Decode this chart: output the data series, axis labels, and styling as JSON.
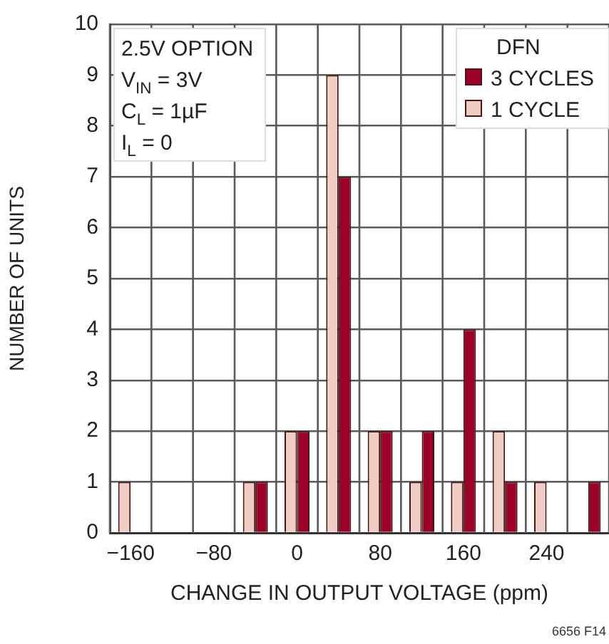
{
  "chart_data": {
    "type": "histogram",
    "xlabel": "CHANGE IN OUTPUT VOLTAGE (ppm)",
    "ylabel": "NUMBER OF UNITS",
    "legend_title": "DFN",
    "bins": [
      -180,
      -140,
      -100,
      -60,
      -20,
      20,
      60,
      100,
      140,
      180,
      220,
      260,
      300
    ],
    "series": [
      {
        "name": "1 CYCLE",
        "color": "#efcdc5",
        "values": [
          1,
          0,
          0,
          1,
          2,
          9,
          2,
          1,
          1,
          2,
          1,
          0
        ]
      },
      {
        "name": "3 CYCLES",
        "color": "#9b0028",
        "values": [
          0,
          0,
          0,
          1,
          2,
          7,
          2,
          2,
          4,
          1,
          0,
          1
        ]
      }
    ],
    "xlim": [
      -180,
      300
    ],
    "xticks": [
      -160,
      -80,
      0,
      80,
      160,
      240
    ],
    "ylim": [
      0,
      10
    ],
    "yticks": [
      0,
      1,
      2,
      3,
      4,
      5,
      6,
      7,
      8,
      9,
      10
    ],
    "grid": true,
    "legend": "top right",
    "annotations": [
      "2.5V OPTION",
      "V$_{IN}$ = 3V",
      "C$_{L}$ = 1µF",
      "I$_{L}$ = 0",
      "6656 F14"
    ]
  }
}
